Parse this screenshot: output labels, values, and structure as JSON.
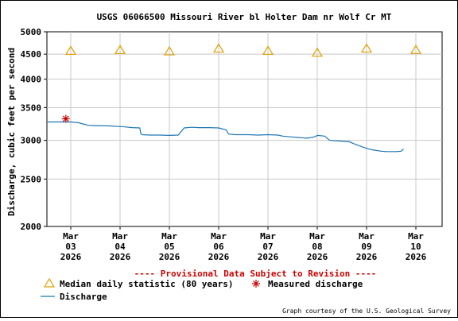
{
  "chart_data": {
    "type": "line",
    "title": "USGS 06066500 Missouri River bl Holter Dam nr Wolf Cr MT",
    "ylabel": "Discharge, cubic feet per second",
    "xlabel": "",
    "y_scale": "log",
    "ylim": [
      2000,
      5000
    ],
    "y_ticks": [
      2000,
      2500,
      3000,
      3500,
      4000,
      4500,
      5000
    ],
    "y_tick_labels": [
      "2000",
      "2500",
      "3000",
      "3500",
      "4000",
      "4500",
      "5000"
    ],
    "x_range_days": [
      0,
      8
    ],
    "x_tick_labels": [
      [
        "Mar",
        "03",
        "2026"
      ],
      [
        "Mar",
        "04",
        "2026"
      ],
      [
        "Mar",
        "05",
        "2026"
      ],
      [
        "Mar",
        "06",
        "2026"
      ],
      [
        "Mar",
        "07",
        "2026"
      ],
      [
        "Mar",
        "08",
        "2026"
      ],
      [
        "Mar",
        "09",
        "2026"
      ],
      [
        "Mar",
        "10",
        "2026"
      ]
    ],
    "grid": true,
    "series": [
      {
        "name": "Discharge",
        "color": "#1f77b4",
        "style": "line",
        "points": [
          [
            -0.47,
            3270
          ],
          [
            0.0,
            3270
          ],
          [
            0.15,
            3260
          ],
          [
            0.25,
            3240
          ],
          [
            0.35,
            3220
          ],
          [
            0.5,
            3215
          ],
          [
            0.8,
            3210
          ],
          [
            1.0,
            3200
          ],
          [
            1.1,
            3195
          ],
          [
            1.25,
            3185
          ],
          [
            1.4,
            3180
          ],
          [
            1.42,
            3100
          ],
          [
            1.45,
            3080
          ],
          [
            1.6,
            3075
          ],
          [
            1.8,
            3075
          ],
          [
            2.0,
            3070
          ],
          [
            2.18,
            3075
          ],
          [
            2.3,
            3180
          ],
          [
            2.45,
            3190
          ],
          [
            2.6,
            3185
          ],
          [
            2.8,
            3185
          ],
          [
            3.0,
            3180
          ],
          [
            3.15,
            3150
          ],
          [
            3.2,
            3090
          ],
          [
            3.35,
            3080
          ],
          [
            3.6,
            3080
          ],
          [
            3.8,
            3075
          ],
          [
            4.0,
            3080
          ],
          [
            4.2,
            3075
          ],
          [
            4.3,
            3060
          ],
          [
            4.45,
            3050
          ],
          [
            4.6,
            3040
          ],
          [
            4.8,
            3030
          ],
          [
            4.95,
            3050
          ],
          [
            5.0,
            3070
          ],
          [
            5.15,
            3060
          ],
          [
            5.25,
            3000
          ],
          [
            5.45,
            2990
          ],
          [
            5.65,
            2980
          ],
          [
            5.75,
            2950
          ],
          [
            5.95,
            2900
          ],
          [
            6.1,
            2870
          ],
          [
            6.2,
            2860
          ],
          [
            6.3,
            2850
          ],
          [
            6.4,
            2845
          ],
          [
            6.5,
            2845
          ],
          [
            6.6,
            2845
          ],
          [
            6.7,
            2850
          ],
          [
            6.75,
            2880
          ]
        ]
      },
      {
        "name": "Median daily statistic (80 years)",
        "color": "#e0a000",
        "style": "triangle",
        "points": [
          [
            0.0,
            4580
          ],
          [
            1.0,
            4600
          ],
          [
            2.0,
            4570
          ],
          [
            3.0,
            4630
          ],
          [
            4.0,
            4580
          ],
          [
            5.0,
            4540
          ],
          [
            6.0,
            4630
          ],
          [
            7.0,
            4600
          ]
        ]
      },
      {
        "name": "Measured discharge",
        "color": "#cc0000",
        "style": "asterisk",
        "points": [
          [
            -0.1,
            3320
          ]
        ]
      }
    ],
    "legend_position": "bottom-left",
    "notice": "---- Provisional Data Subject to Revision ----",
    "notice_color": "#cc0000",
    "credit": "Graph courtesy of the U.S. Geological Survey"
  }
}
